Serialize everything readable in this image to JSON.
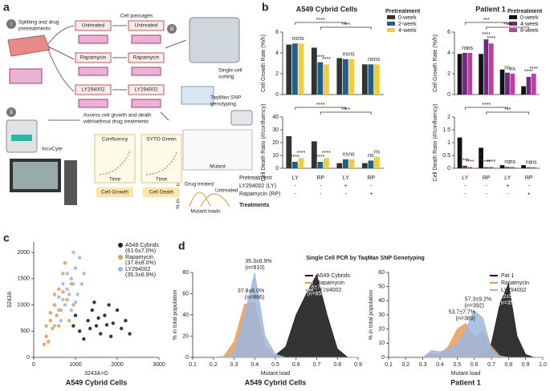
{
  "panel_labels": [
    "a",
    "b",
    "c",
    "d"
  ],
  "diagram": {
    "step_i": "i",
    "step_i_text": [
      "Splitting and drug",
      "pretreatments"
    ],
    "passages": "Cell passages",
    "conditions": [
      "Untreated",
      "Rapamycin",
      "LY294002"
    ],
    "step_iii": "iii",
    "sorting": [
      "Single cell",
      "sorting"
    ],
    "genotyping": [
      "TaqMan SNP",
      "genotyping"
    ],
    "step_ii": "ii",
    "incucyte": "IncuCyte",
    "assess": [
      "Assess cell growth and death",
      "with/without drug treatments"
    ],
    "confluency": "Confluency",
    "syto": "SYTO Green",
    "time": "Time",
    "growth": "Cell Growth",
    "death": "Cell Death",
    "drug_treated": "Drug treated",
    "untreated": "Untreated",
    "pct_cells": "% in total cells",
    "mutant_loads": "Mutant loads",
    "mutant": "Mutant"
  },
  "treatment_table": {
    "rows": [
      {
        "label": "Pretreatment",
        "cells": [
          "LY",
          "RP",
          "LY",
          "RP"
        ]
      },
      {
        "label": "LY294002 (LY)",
        "cells": [
          "-",
          "-",
          "+",
          "-"
        ]
      },
      {
        "label": "Rapamycin (RP)",
        "cells": [
          "-",
          "-",
          "-",
          "+"
        ]
      }
    ],
    "footer": "Treatments"
  },
  "chart_data": [
    {
      "type": "bar",
      "title": "A549 Cybrid Cells",
      "y_label": "Cell Growth Rate (%/h)",
      "legend_title": "Pretreatment",
      "ylim": [
        0,
        6
      ],
      "yticks": [
        0,
        2,
        4,
        6
      ],
      "bracket_labels": [
        "****",
        "****"
      ],
      "series": [
        {
          "name": "0-week",
          "color": "#333333",
          "values": [
            4.8,
            4.5,
            3.5,
            2.9
          ],
          "significance": [
            null,
            null,
            null,
            null
          ]
        },
        {
          "name": "2-week",
          "color": "#1f5f8b",
          "values": [
            4.9,
            3.1,
            3.4,
            2.9
          ],
          "significance": [
            "ns",
            "****",
            "ns",
            "ns"
          ]
        },
        {
          "name": "4-week",
          "color": "#f2cc3c",
          "values": [
            4.9,
            2.9,
            3.4,
            2.9
          ],
          "significance": [
            "ns",
            "****",
            "ns",
            "ns"
          ]
        }
      ]
    },
    {
      "type": "bar",
      "title": "Patient 1",
      "y_label": "Cell Growth Rate (%/h)",
      "legend_title": "Pretreatment",
      "ylim": [
        0,
        6
      ],
      "yticks": [
        0,
        2,
        4,
        6
      ],
      "bracket_labels": [
        "***",
        "****"
      ],
      "series": [
        {
          "name": "0-week",
          "color": "#111111",
          "values": [
            3.9,
            3.9,
            2.4,
            0.8
          ],
          "significance": [
            null,
            null,
            null,
            null
          ]
        },
        {
          "name": "4-week",
          "color": "#6e2a7e",
          "values": [
            4.0,
            5.3,
            2.1,
            1.7
          ],
          "significance": [
            "ns",
            "****",
            "ns",
            "****"
          ]
        },
        {
          "name": "8-week",
          "color": "#c03ca0",
          "values": [
            4.0,
            4.9,
            2.0,
            2.0
          ],
          "significance": [
            "ns",
            "****",
            "ns",
            "****"
          ]
        }
      ]
    },
    {
      "type": "bar",
      "y_label": "Cell Death Ratio (#/confluency)",
      "ylim": [
        0,
        40
      ],
      "yticks": [
        0,
        10,
        20,
        30,
        40
      ],
      "bracket_labels": [
        "****",
        "****"
      ],
      "series": [
        {
          "name": "0-week",
          "color": "#333333",
          "values": [
            25,
            21,
            4,
            4
          ],
          "significance": [
            null,
            null,
            null,
            null
          ]
        },
        {
          "name": "2-week",
          "color": "#1f5f8b",
          "values": [
            5,
            5,
            7,
            6
          ],
          "significance": [
            "****",
            "****",
            "ns",
            "ns"
          ]
        },
        {
          "name": "4-week",
          "color": "#f2cc3c",
          "values": [
            8,
            8,
            7,
            9
          ],
          "significance": [
            "****",
            "****",
            "ns",
            "ns"
          ]
        }
      ]
    },
    {
      "type": "bar",
      "y_label": "Cell Death Ratio (#/confluency)",
      "ylim": [
        0,
        2
      ],
      "yticks": [
        0,
        0.5,
        1,
        1.5,
        2
      ],
      "bracket_labels": [
        "****",
        "***"
      ],
      "series": [
        {
          "name": "0-week",
          "color": "#111111",
          "values": [
            1.2,
            0.8,
            0.12,
            0.12
          ],
          "significance": [
            null,
            null,
            null,
            null
          ]
        },
        {
          "name": "4-week",
          "color": "#6e2a7e",
          "values": [
            0.1,
            0.04,
            0.05,
            0.04
          ],
          "significance": [
            "****",
            "****",
            "ns",
            "ns"
          ]
        },
        {
          "name": "8-week",
          "color": "#c03ca0",
          "values": [
            0.05,
            0.05,
            0.05,
            0.04
          ],
          "significance": [
            "****",
            "****",
            "ns",
            "ns"
          ]
        }
      ]
    },
    {
      "type": "scatter",
      "title": "A549 Cybrid Cells",
      "x_label": "3243A>G",
      "y_label": "3243A",
      "xlim": [
        0,
        3000
      ],
      "xticks": [
        0,
        1000,
        2000,
        3000
      ],
      "ylim": [
        0,
        2200
      ],
      "yticks": [
        0,
        500,
        1000,
        1500,
        2000
      ],
      "series": [
        {
          "name": "A549 Cybrids",
          "note": "(61.6±7.0%)",
          "color": "#222222",
          "x": [
            1100,
            1300,
            1500,
            1700,
            1900,
            2100,
            1400,
            1600,
            1800,
            2200,
            1200,
            1000,
            2000,
            1350,
            1750,
            2300,
            1550,
            950,
            1850,
            1450
          ],
          "values": [
            500,
            700,
            600,
            800,
            650,
            550,
            900,
            450,
            1000,
            700,
            350,
            800,
            900,
            550,
            620,
            450,
            750,
            600,
            400,
            1050
          ]
        },
        {
          "name": "Rapamycin",
          "note": "(37.8±8.0%)",
          "color": "#ee9a4d",
          "x": [
            300,
            400,
            500,
            600,
            700,
            550,
            450,
            800,
            650,
            350,
            250,
            900,
            750,
            600,
            500,
            850,
            400,
            700,
            300,
            950
          ],
          "values": [
            400,
            700,
            1000,
            1300,
            1600,
            800,
            550,
            1100,
            900,
            300,
            250,
            1400,
            1800,
            600,
            1200,
            700,
            850,
            1250,
            600,
            1000
          ]
        },
        {
          "name": "LY294002",
          "note": "(35.3±6.9%)",
          "color": "#9ab8e0",
          "x": [
            600,
            700,
            800,
            900,
            1000,
            650,
            750,
            850,
            950,
            1100,
            500,
            1200,
            900,
            1050,
            800,
            700,
            1000,
            600,
            1150,
            950
          ],
          "values": [
            900,
            1100,
            1300,
            1500,
            1700,
            700,
            1000,
            1200,
            1400,
            1900,
            600,
            1600,
            900,
            1200,
            1600,
            1400,
            1050,
            1150,
            1400,
            2000
          ]
        }
      ]
    },
    {
      "type": "area",
      "title": "Single Cell PCR by TaqMan SNP Genotyping",
      "subtitle": "A549 Cybrid Cells",
      "x_label": "Mutant load",
      "y_label": "% in total population",
      "xlim": [
        0.1,
        0.9
      ],
      "xticks": [
        0.1,
        0.2,
        0.3,
        0.4,
        0.5,
        0.6,
        0.7,
        0.8,
        0.9
      ],
      "ylim": [
        0,
        80
      ],
      "yticks": [
        0,
        20,
        40,
        60,
        80
      ],
      "x": [
        0.2,
        0.25,
        0.3,
        0.35,
        0.4,
        0.45,
        0.5,
        0.55,
        0.6,
        0.65,
        0.7,
        0.75,
        0.8,
        0.85,
        0.9
      ],
      "series": [
        {
          "name": "A549 Cybrids",
          "color": "#111111",
          "stat": "61.6±7.0%",
          "n": "(n=854)",
          "values": [
            0,
            0,
            0,
            0,
            0,
            0,
            2,
            10,
            40,
            60,
            78,
            40,
            8,
            0,
            0
          ]
        },
        {
          "name": "Rapamycin",
          "color": "#ee9a4d",
          "stat": "37.8±8.0%",
          "n": "(n=886)",
          "values": [
            0,
            1,
            15,
            50,
            52,
            10,
            2,
            0,
            0,
            0,
            0,
            0,
            0,
            0,
            0
          ]
        },
        {
          "name": "LY294002",
          "color": "#9ab8e0",
          "stat": "35.3±6.9%",
          "n": "(n=910)",
          "values": [
            0,
            0,
            5,
            40,
            80,
            20,
            3,
            0,
            0,
            0,
            0,
            0,
            0,
            0,
            0
          ]
        }
      ]
    },
    {
      "type": "area",
      "subtitle": "Patient 1",
      "x_label": "Mutant load",
      "y_label": "% in total population",
      "xlim": [
        0.1,
        1
      ],
      "xticks": [
        0.1,
        0.2,
        0.3,
        0.4,
        0.5,
        0.6,
        0.7,
        0.8,
        0.9,
        {
          "value": 1,
          "label": "1.0"
        }
      ],
      "ylim": [
        0,
        60
      ],
      "yticks": [
        0,
        10,
        20,
        30,
        40,
        50,
        60
      ],
      "x": [
        0.3,
        0.35,
        0.4,
        0.45,
        0.5,
        0.55,
        0.6,
        0.65,
        0.7,
        0.75,
        0.8,
        0.85,
        0.9,
        0.95,
        1
      ],
      "series": [
        {
          "name": "Pat 1",
          "color": "#111111",
          "stat": "75.2±5.4%",
          "n": "(n=353)",
          "values": [
            0,
            0,
            0,
            0,
            0,
            0,
            0,
            2,
            10,
            38,
            52,
            15,
            2,
            0,
            0
          ]
        },
        {
          "name": "Rapamycin",
          "color": "#ee9a4d",
          "stat": "53.7±7.7%",
          "n": "(n=389)",
          "values": [
            0,
            3,
            2,
            8,
            20,
            24,
            14,
            18,
            8,
            1,
            0,
            0,
            0,
            0,
            0
          ]
        },
        {
          "name": "LY294002",
          "color": "#9ab8e0",
          "stat": "57.3±9.2%",
          "n": "(n=392)",
          "values": [
            0,
            5,
            4,
            6,
            10,
            20,
            33,
            28,
            6,
            1,
            0,
            0,
            0,
            0,
            0
          ]
        }
      ]
    }
  ]
}
